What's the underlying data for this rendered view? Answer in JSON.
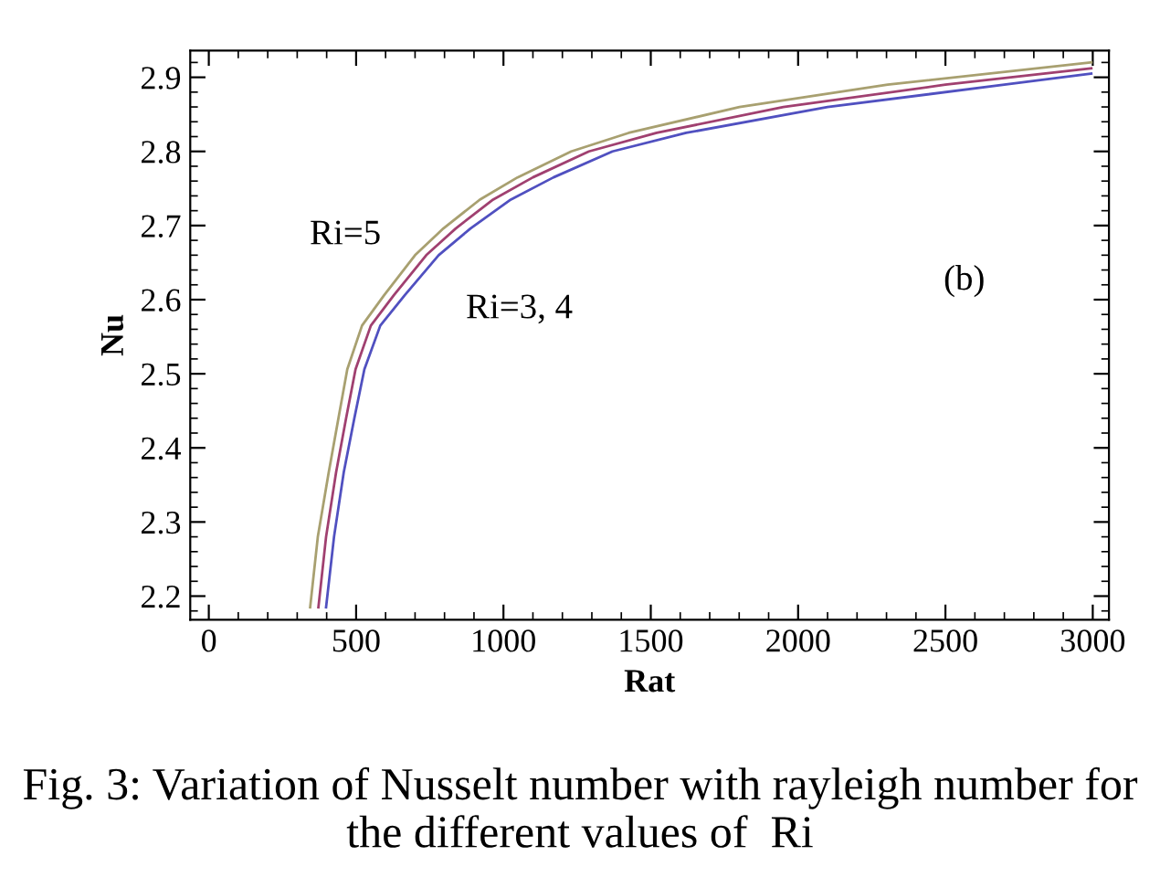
{
  "chart_data": {
    "type": "line",
    "xlabel": "Rat",
    "ylabel": "Nu",
    "xlim": [
      -63,
      3055
    ],
    "ylim": [
      2.168,
      2.936
    ],
    "xticks": [
      0,
      500,
      1000,
      1500,
      2000,
      2500,
      3000
    ],
    "yticks": [
      2.2,
      2.3,
      2.4,
      2.5,
      2.6,
      2.7,
      2.8,
      2.9
    ],
    "grid": false,
    "legend": false,
    "marker": "none",
    "line_style": "solid",
    "series": [
      {
        "color": "#a8a070",
        "x": [
          344,
          370,
          407,
          440,
          470,
          520,
          595,
          700,
          796,
          920,
          1048,
          1230,
          1425,
          1801,
          2304,
          2995
        ],
        "values": [
          2.185,
          2.28,
          2.367,
          2.44,
          2.506,
          2.565,
          2.606,
          2.66,
          2.696,
          2.735,
          2.765,
          2.8,
          2.825,
          2.86,
          2.89,
          2.92
        ]
      },
      {
        "color": "#a04070",
        "x": [
          372,
          398,
          432,
          466,
          498,
          550,
          628,
          738,
          838,
          965,
          1100,
          1290,
          1520,
          1950,
          2500,
          2995
        ],
        "values": [
          2.185,
          2.28,
          2.367,
          2.44,
          2.506,
          2.565,
          2.606,
          2.66,
          2.696,
          2.735,
          2.765,
          2.8,
          2.825,
          2.86,
          2.89,
          2.912
        ]
      },
      {
        "color": "#5050c0",
        "x": [
          398,
          425,
          458,
          494,
          528,
          582,
          665,
          780,
          888,
          1025,
          1170,
          1370,
          1620,
          2100,
          2700,
          2995
        ],
        "values": [
          2.185,
          2.28,
          2.367,
          2.44,
          2.506,
          2.565,
          2.606,
          2.66,
          2.696,
          2.735,
          2.765,
          2.8,
          2.825,
          2.86,
          2.89,
          2.905
        ]
      }
    ],
    "annotations": [
      "Ri=5",
      "Ri=3, 4",
      "(b)",
      "Fig. 3: Variation of Nusselt number with rayleigh number for the different values of  Ri"
    ]
  }
}
